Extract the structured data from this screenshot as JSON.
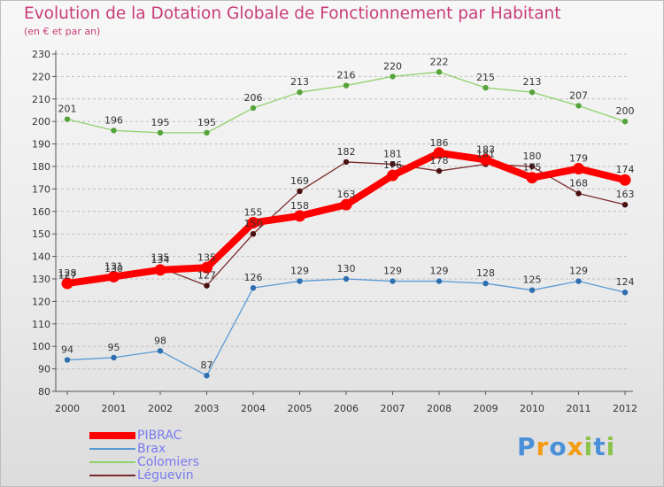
{
  "chart_data": {
    "type": "line",
    "title": "Evolution de la Dotation Globale de Fonctionnement par Habitant",
    "subtitle": "(en € et par an)",
    "xlabel": "",
    "ylabel": "",
    "x": [
      "2000",
      "2001",
      "2002",
      "2003",
      "2004",
      "2005",
      "2006",
      "2007",
      "2008",
      "2009",
      "2010",
      "2011",
      "2012"
    ],
    "ylim": [
      80,
      230
    ],
    "yticks": [
      "80",
      "90",
      "100",
      "110",
      "120",
      "130",
      "140",
      "150",
      "160",
      "170",
      "180",
      "190",
      "200",
      "210",
      "220",
      "230"
    ],
    "grid": "horizontal-dashed",
    "legend_position": "bottom-left",
    "series": [
      {
        "name": "PIBRAC",
        "color": "#ff0000",
        "values": [
          128,
          131,
          134,
          135,
          155,
          158,
          163,
          176,
          186,
          183,
          175,
          179,
          174
        ]
      },
      {
        "name": "Brax",
        "color": "#5b9bd5",
        "values": [
          94,
          95,
          98,
          87,
          126,
          129,
          130,
          129,
          129,
          128,
          125,
          129,
          124
        ]
      },
      {
        "name": "Colomiers",
        "color": "#8fd16a",
        "values": [
          201,
          196,
          195,
          195,
          206,
          213,
          216,
          220,
          222,
          215,
          213,
          207,
          200
        ]
      },
      {
        "name": "Léguevin",
        "color": "#7a2a2a",
        "values": [
          127,
          130,
          135,
          127,
          150,
          169,
          182,
          181,
          178,
          181,
          180,
          168,
          163
        ]
      }
    ]
  },
  "logo": {
    "letters": [
      "P",
      "r",
      "o",
      "x",
      "i",
      "t",
      "i"
    ],
    "colors": [
      "#4a90d9",
      "#f39c12",
      "#4a90d9",
      "#f39c12",
      "#8bc34a",
      "#4a90d9",
      "#8bc34a"
    ]
  }
}
